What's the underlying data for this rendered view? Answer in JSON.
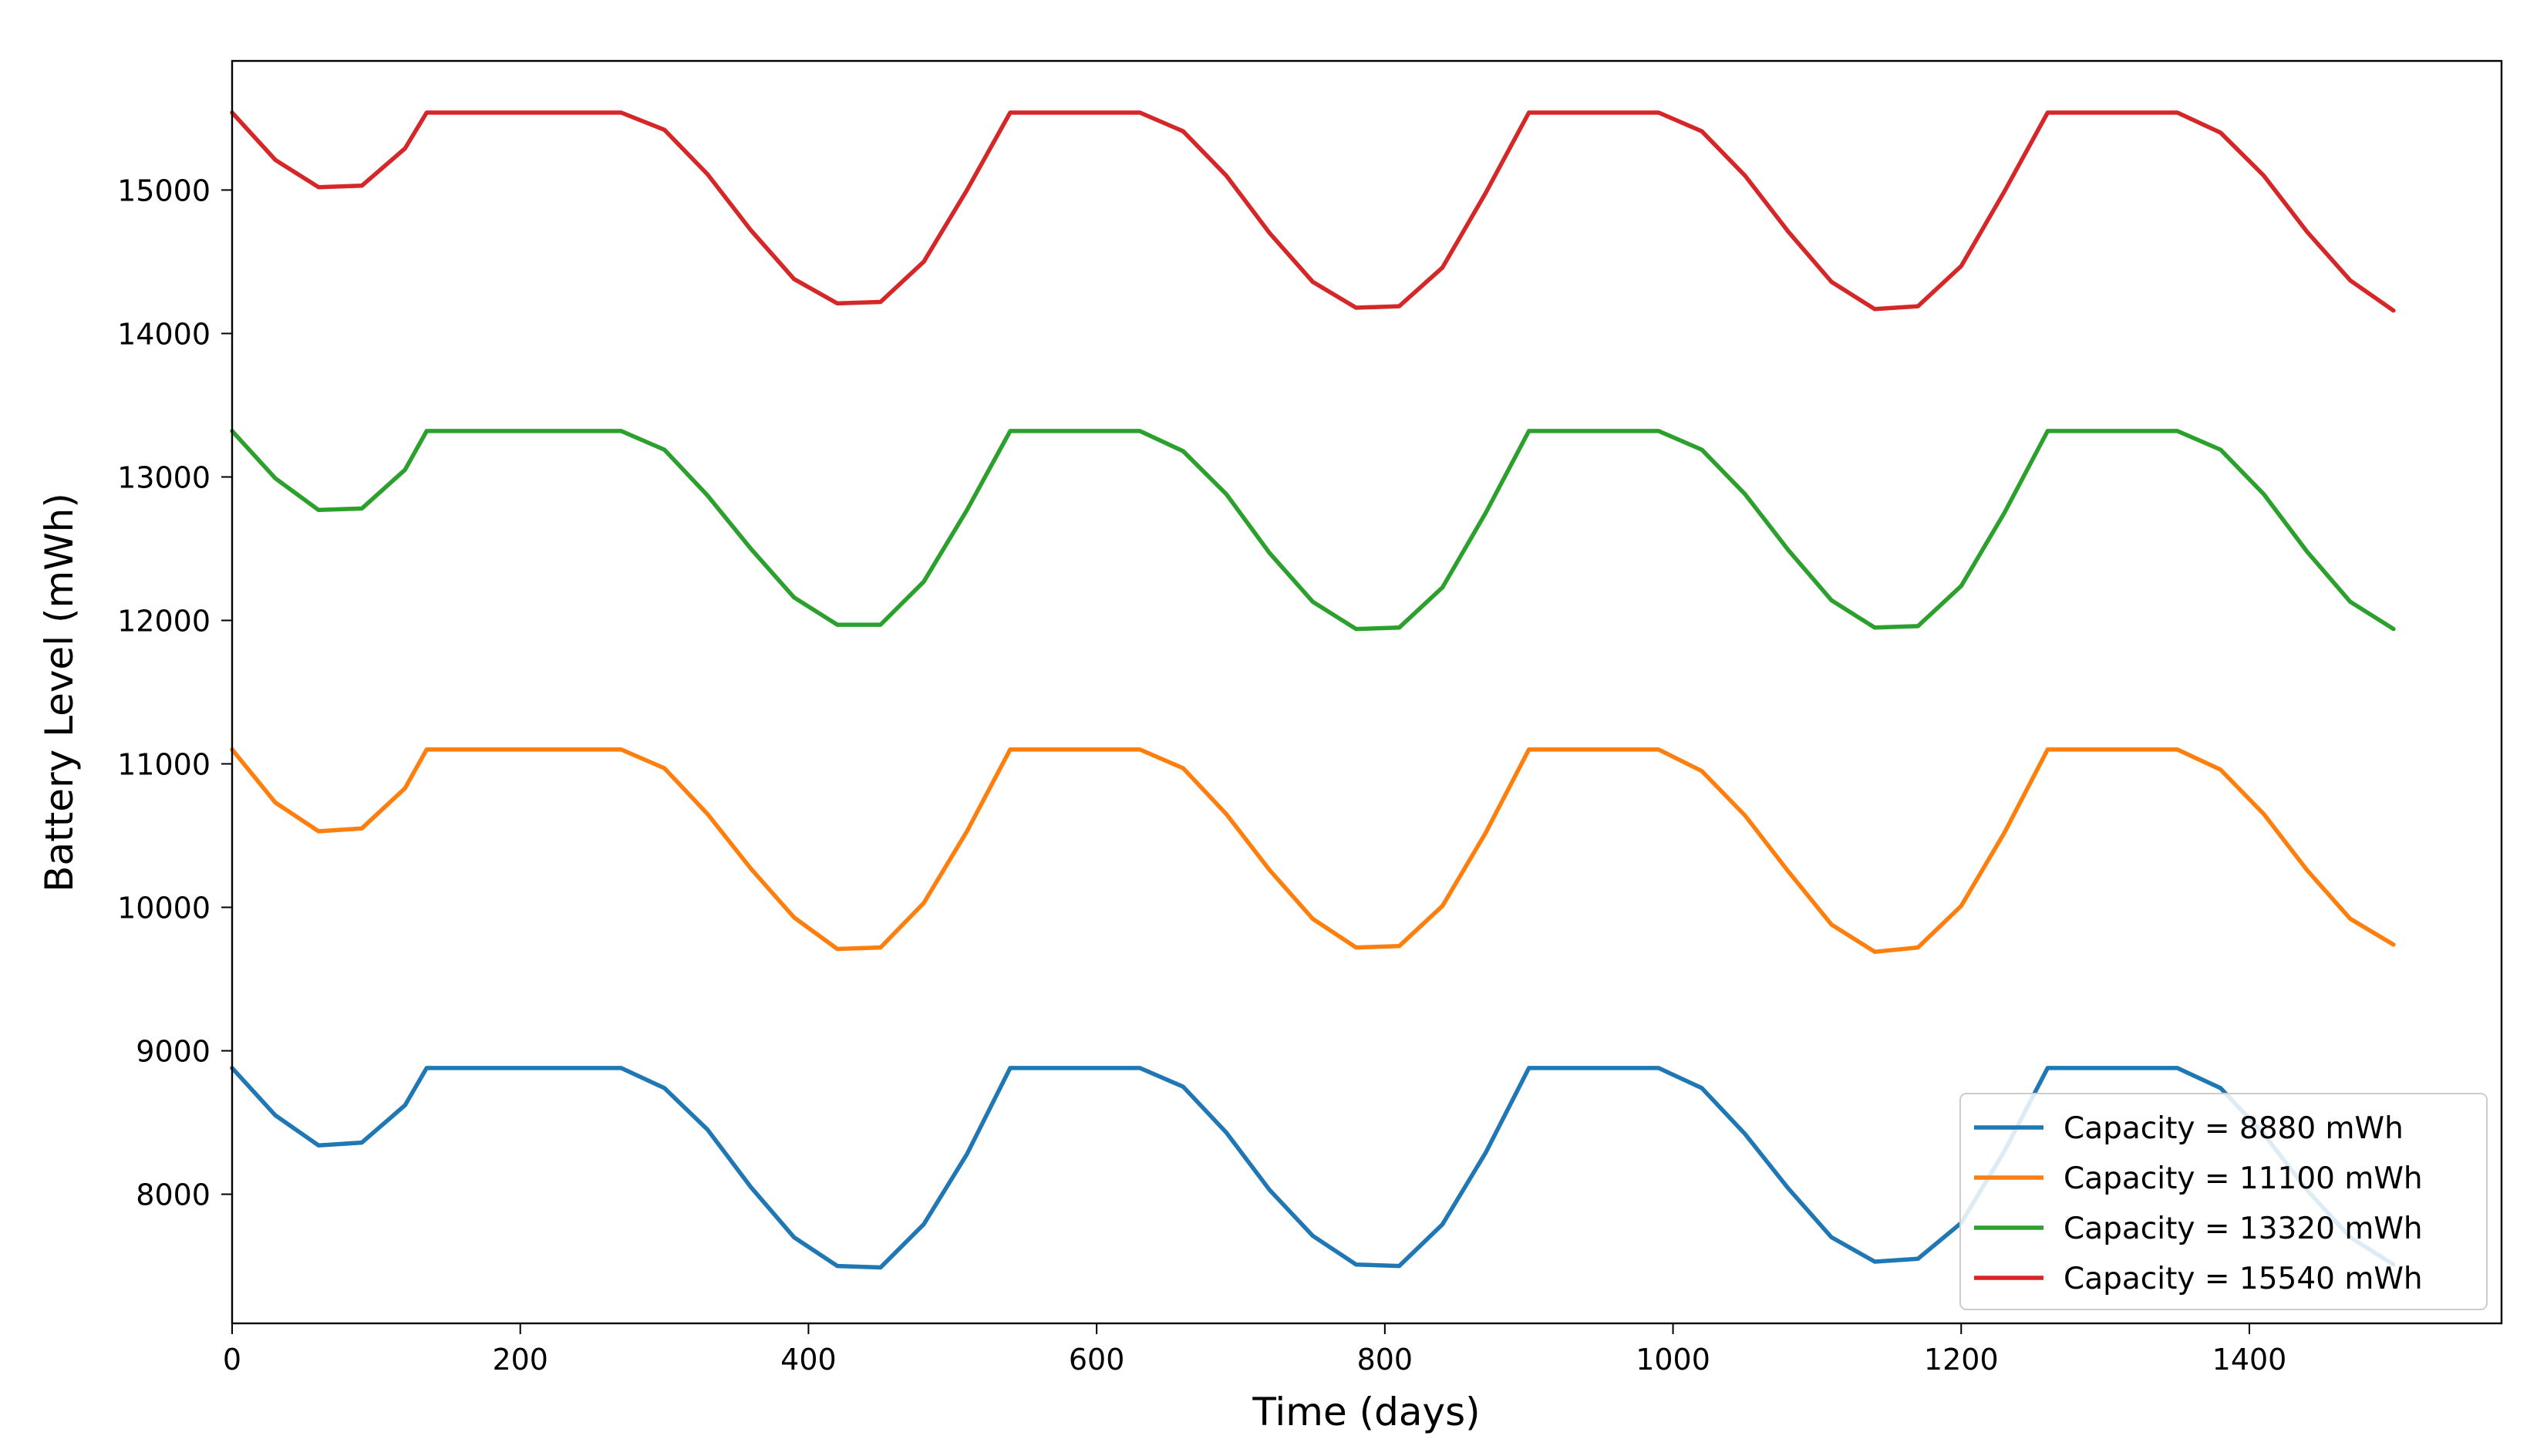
{
  "chart_data": {
    "type": "line",
    "title": "",
    "xlabel": "Time (days)",
    "ylabel": "Battery Level (mWh)",
    "xlim": [
      0,
      1575
    ],
    "ylim": [
      7100,
      15900
    ],
    "xticks": [
      0,
      200,
      400,
      600,
      800,
      1000,
      1200,
      1400
    ],
    "yticks": [
      8000,
      9000,
      10000,
      11000,
      12000,
      13000,
      14000,
      15000
    ],
    "grid": false,
    "legend_position": "lower-right",
    "series": [
      {
        "name": "Capacity = 8880 mWh",
        "color": "#1f77b4",
        "points": [
          [
            0,
            8880
          ],
          [
            30,
            8550
          ],
          [
            60,
            8340
          ],
          [
            90,
            8360
          ],
          [
            120,
            8620
          ],
          [
            135,
            8880
          ],
          [
            270,
            8880
          ],
          [
            300,
            8740
          ],
          [
            330,
            8450
          ],
          [
            360,
            8050
          ],
          [
            390,
            7700
          ],
          [
            420,
            7500
          ],
          [
            450,
            7490
          ],
          [
            480,
            7790
          ],
          [
            510,
            8280
          ],
          [
            540,
            8880
          ],
          [
            630,
            8880
          ],
          [
            660,
            8750
          ],
          [
            690,
            8430
          ],
          [
            720,
            8030
          ],
          [
            750,
            7710
          ],
          [
            780,
            7510
          ],
          [
            810,
            7500
          ],
          [
            840,
            7790
          ],
          [
            870,
            8290
          ],
          [
            900,
            8880
          ],
          [
            990,
            8880
          ],
          [
            1020,
            8740
          ],
          [
            1050,
            8420
          ],
          [
            1080,
            8040
          ],
          [
            1110,
            7700
          ],
          [
            1140,
            7530
          ],
          [
            1170,
            7550
          ],
          [
            1200,
            7800
          ],
          [
            1230,
            8300
          ],
          [
            1260,
            8880
          ],
          [
            1350,
            8880
          ],
          [
            1380,
            8740
          ],
          [
            1410,
            8420
          ],
          [
            1440,
            8030
          ],
          [
            1470,
            7700
          ],
          [
            1500,
            7510
          ]
        ]
      },
      {
        "name": "Capacity = 11100 mWh",
        "color": "#ff7f0e",
        "points": [
          [
            0,
            11100
          ],
          [
            30,
            10730
          ],
          [
            60,
            10530
          ],
          [
            90,
            10550
          ],
          [
            120,
            10830
          ],
          [
            135,
            11100
          ],
          [
            270,
            11100
          ],
          [
            300,
            10970
          ],
          [
            330,
            10650
          ],
          [
            360,
            10270
          ],
          [
            390,
            9930
          ],
          [
            420,
            9710
          ],
          [
            450,
            9720
          ],
          [
            480,
            10030
          ],
          [
            510,
            10530
          ],
          [
            540,
            11100
          ],
          [
            630,
            11100
          ],
          [
            660,
            10970
          ],
          [
            690,
            10650
          ],
          [
            720,
            10260
          ],
          [
            750,
            9920
          ],
          [
            780,
            9720
          ],
          [
            810,
            9730
          ],
          [
            840,
            10010
          ],
          [
            870,
            10520
          ],
          [
            900,
            11100
          ],
          [
            990,
            11100
          ],
          [
            1020,
            10950
          ],
          [
            1050,
            10640
          ],
          [
            1080,
            10250
          ],
          [
            1110,
            9880
          ],
          [
            1140,
            9690
          ],
          [
            1170,
            9720
          ],
          [
            1200,
            10010
          ],
          [
            1230,
            10520
          ],
          [
            1260,
            11100
          ],
          [
            1350,
            11100
          ],
          [
            1380,
            10960
          ],
          [
            1410,
            10650
          ],
          [
            1440,
            10260
          ],
          [
            1470,
            9920
          ],
          [
            1500,
            9740
          ]
        ]
      },
      {
        "name": "Capacity = 13320 mWh",
        "color": "#2ca02c",
        "points": [
          [
            0,
            13320
          ],
          [
            30,
            12990
          ],
          [
            60,
            12770
          ],
          [
            90,
            12780
          ],
          [
            120,
            13050
          ],
          [
            135,
            13320
          ],
          [
            270,
            13320
          ],
          [
            300,
            13190
          ],
          [
            330,
            12870
          ],
          [
            360,
            12500
          ],
          [
            390,
            12160
          ],
          [
            420,
            11970
          ],
          [
            450,
            11970
          ],
          [
            480,
            12270
          ],
          [
            510,
            12770
          ],
          [
            540,
            13320
          ],
          [
            630,
            13320
          ],
          [
            660,
            13180
          ],
          [
            690,
            12880
          ],
          [
            720,
            12470
          ],
          [
            750,
            12130
          ],
          [
            780,
            11940
          ],
          [
            810,
            11950
          ],
          [
            840,
            12230
          ],
          [
            870,
            12750
          ],
          [
            900,
            13320
          ],
          [
            990,
            13320
          ],
          [
            1020,
            13190
          ],
          [
            1050,
            12880
          ],
          [
            1080,
            12490
          ],
          [
            1110,
            12140
          ],
          [
            1140,
            11950
          ],
          [
            1170,
            11960
          ],
          [
            1200,
            12240
          ],
          [
            1230,
            12750
          ],
          [
            1260,
            13320
          ],
          [
            1350,
            13320
          ],
          [
            1380,
            13190
          ],
          [
            1410,
            12880
          ],
          [
            1440,
            12480
          ],
          [
            1470,
            12130
          ],
          [
            1500,
            11940
          ]
        ]
      },
      {
        "name": "Capacity = 15540 mWh",
        "color": "#d62728",
        "points": [
          [
            0,
            15540
          ],
          [
            30,
            15210
          ],
          [
            60,
            15020
          ],
          [
            90,
            15030
          ],
          [
            120,
            15290
          ],
          [
            135,
            15540
          ],
          [
            270,
            15540
          ],
          [
            300,
            15420
          ],
          [
            330,
            15110
          ],
          [
            360,
            14720
          ],
          [
            390,
            14380
          ],
          [
            420,
            14210
          ],
          [
            450,
            14220
          ],
          [
            480,
            14500
          ],
          [
            510,
            15000
          ],
          [
            540,
            15540
          ],
          [
            630,
            15540
          ],
          [
            660,
            15410
          ],
          [
            690,
            15100
          ],
          [
            720,
            14700
          ],
          [
            750,
            14360
          ],
          [
            780,
            14180
          ],
          [
            810,
            14190
          ],
          [
            840,
            14460
          ],
          [
            870,
            14980
          ],
          [
            900,
            15540
          ],
          [
            990,
            15540
          ],
          [
            1020,
            15410
          ],
          [
            1050,
            15100
          ],
          [
            1080,
            14710
          ],
          [
            1110,
            14360
          ],
          [
            1140,
            14170
          ],
          [
            1170,
            14190
          ],
          [
            1200,
            14470
          ],
          [
            1230,
            14990
          ],
          [
            1260,
            15540
          ],
          [
            1350,
            15540
          ],
          [
            1380,
            15400
          ],
          [
            1410,
            15100
          ],
          [
            1440,
            14710
          ],
          [
            1470,
            14370
          ],
          [
            1500,
            14160
          ]
        ]
      }
    ]
  }
}
